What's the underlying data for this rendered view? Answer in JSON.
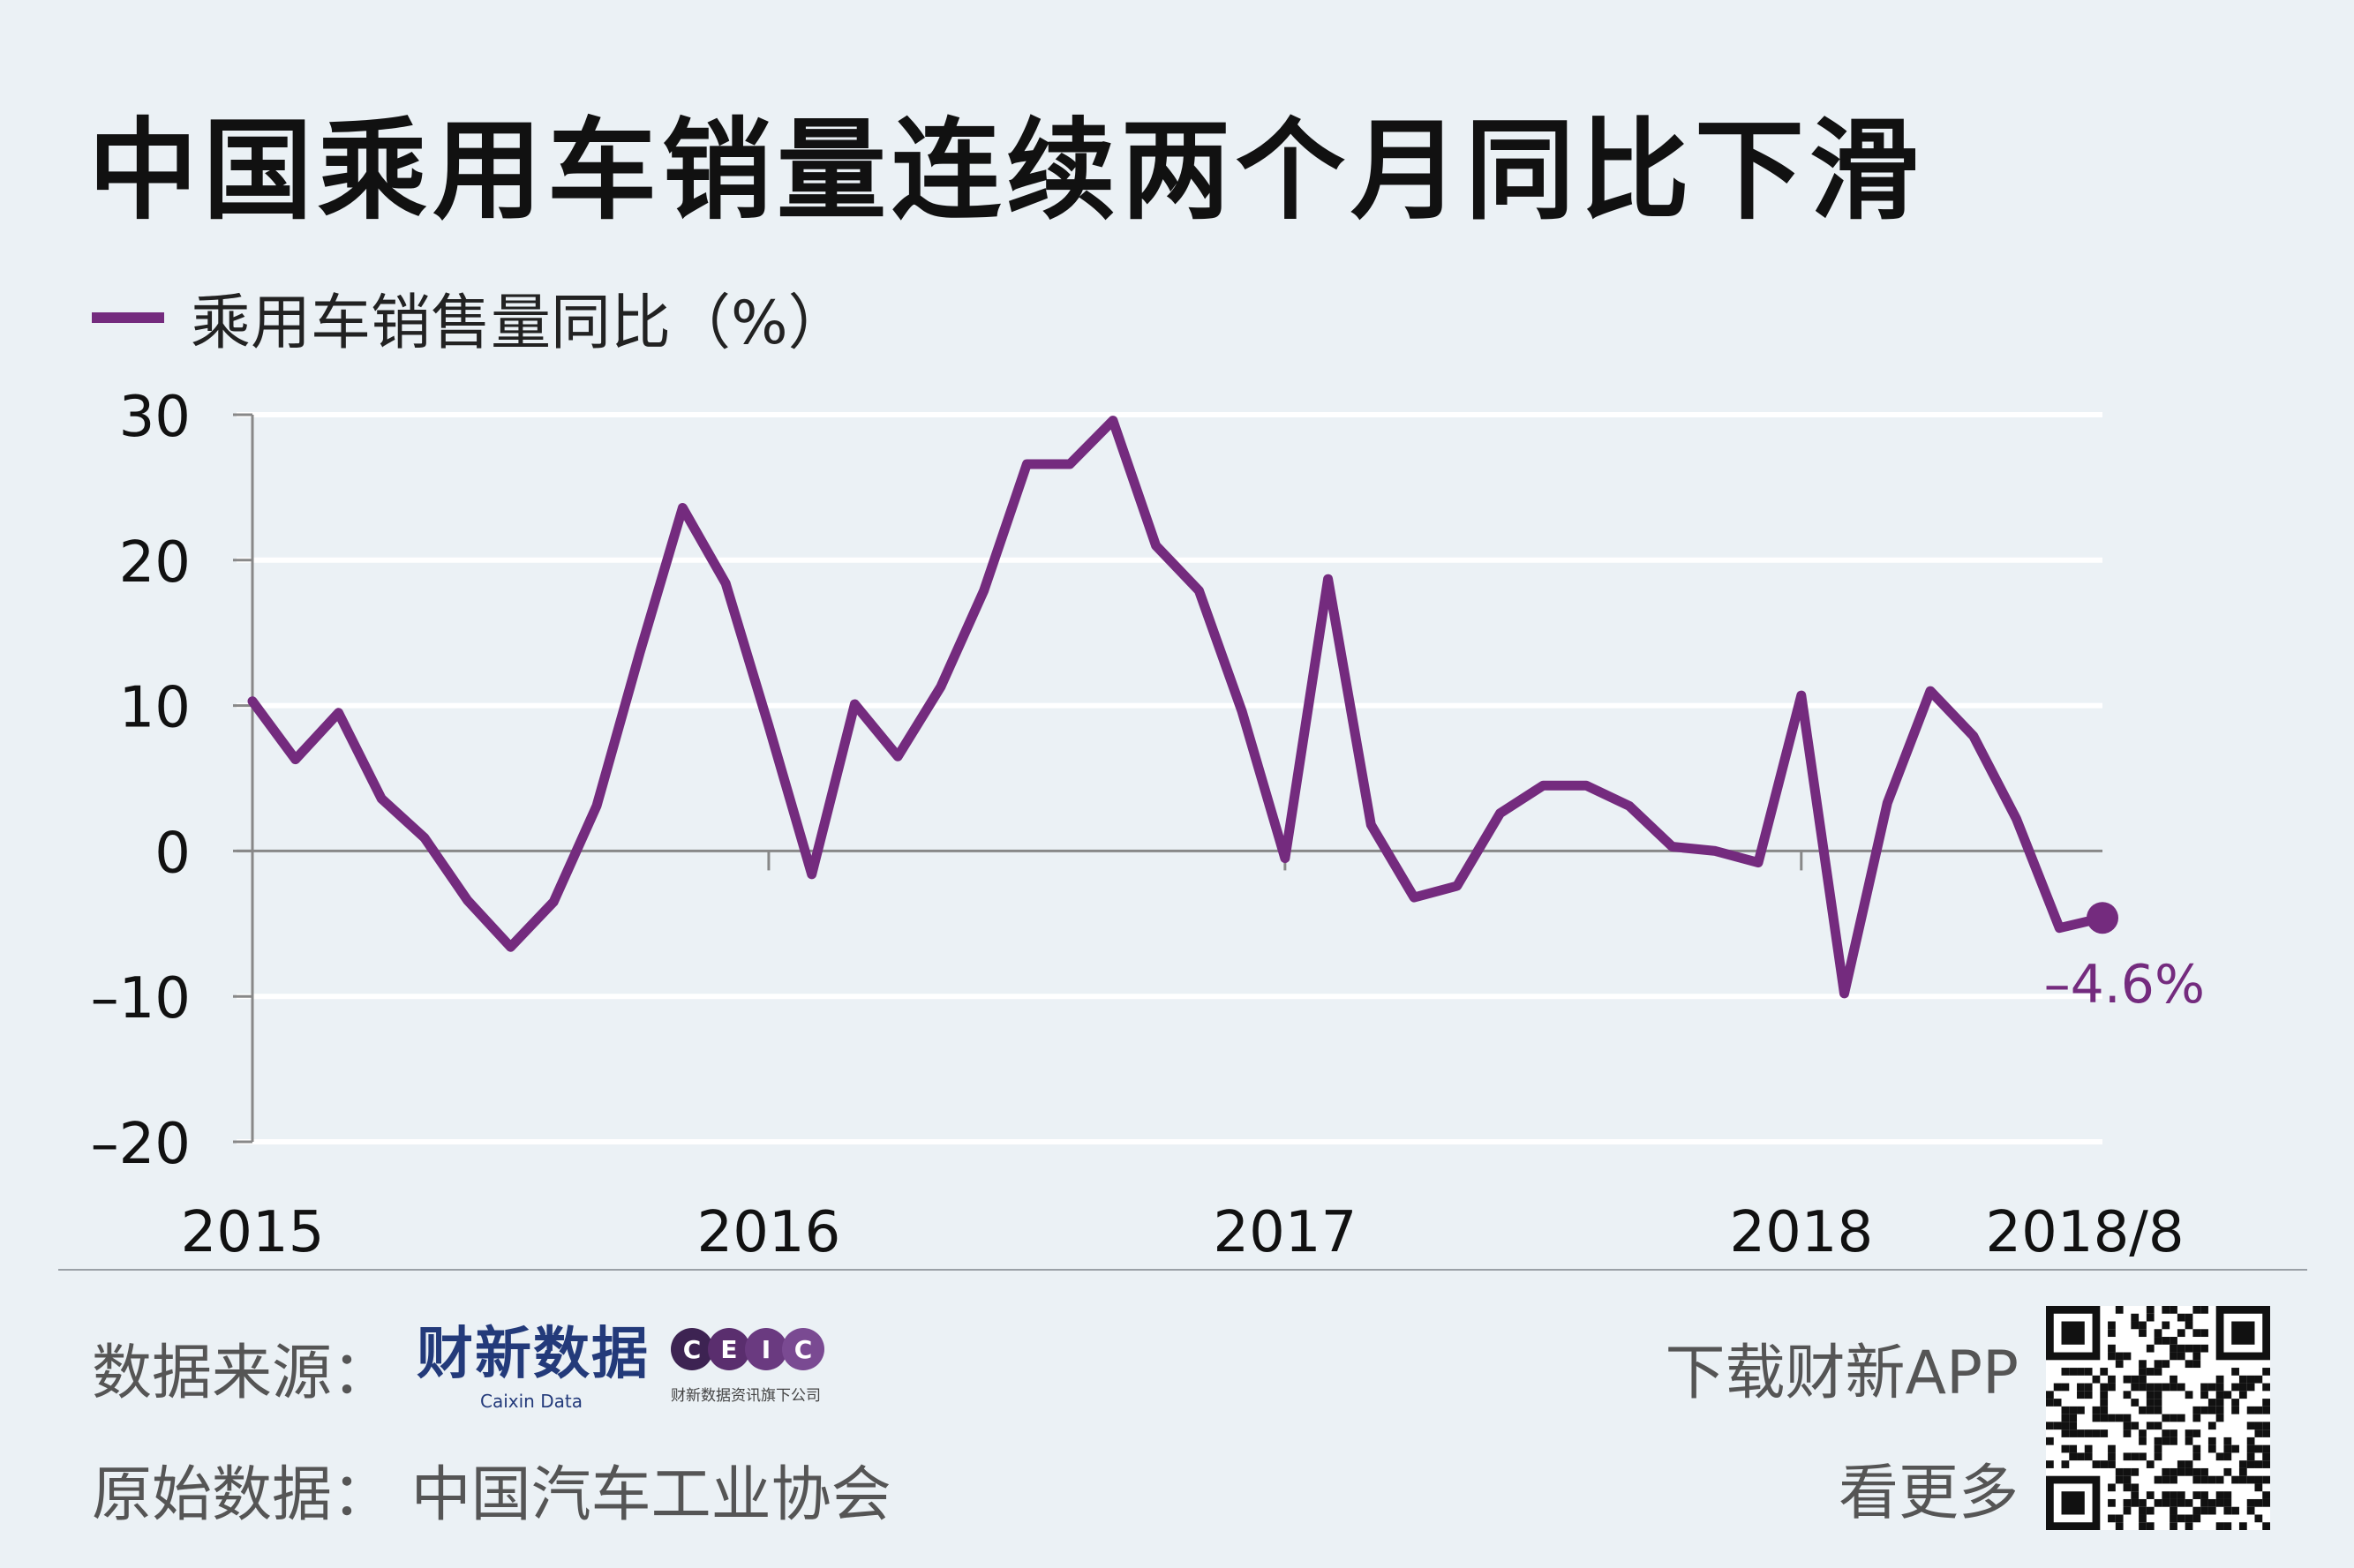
{
  "title": "中国乘用车销量连续两个月同比下滑",
  "legend": {
    "label": "乘用车销售量同比（%）"
  },
  "colors": {
    "series": "#742b7e",
    "grid": "#ffffff",
    "axis": "#888888",
    "background": "#ebf1f5"
  },
  "chart_data": {
    "type": "line",
    "title": "中国乘用车销量连续两个月同比下滑",
    "xlabel": "",
    "ylabel": "",
    "ylim": [
      -20,
      30
    ],
    "yticks": [
      30,
      20,
      10,
      0,
      -10,
      -20
    ],
    "ytick_labels": [
      "30",
      "20",
      "10",
      "0",
      "–10",
      "–20"
    ],
    "xtick_labels": [
      "2015",
      "2016",
      "2017",
      "2018",
      "2018/8"
    ],
    "xtick_index": [
      0,
      12,
      24,
      36,
      43
    ],
    "grid": true,
    "series": [
      {
        "name": "乘用车销售量同比（%）",
        "x": [
          "2015-01",
          "2015-02",
          "2015-03",
          "2015-04",
          "2015-05",
          "2015-06",
          "2015-07",
          "2015-08",
          "2015-09",
          "2015-10",
          "2015-11",
          "2015-12",
          "2016-01",
          "2016-02",
          "2016-03",
          "2016-04",
          "2016-05",
          "2016-06",
          "2016-07",
          "2016-08",
          "2016-09",
          "2016-10",
          "2016-11",
          "2016-12",
          "2017-01",
          "2017-02",
          "2017-03",
          "2017-04",
          "2017-05",
          "2017-06",
          "2017-07",
          "2017-08",
          "2017-09",
          "2017-10",
          "2017-11",
          "2017-12",
          "2018-01",
          "2018-02",
          "2018-03",
          "2018-04",
          "2018-05",
          "2018-06",
          "2018-07",
          "2018-08"
        ],
        "values": [
          10.3,
          6.3,
          9.5,
          3.6,
          0.9,
          -3.4,
          -6.6,
          -3.5,
          3.1,
          13.6,
          23.6,
          18.4,
          8.6,
          -1.6,
          10.1,
          6.5,
          11.3,
          17.9,
          26.6,
          26.6,
          29.6,
          21.0,
          17.9,
          9.6,
          -0.5,
          18.7,
          1.8,
          -3.2,
          -2.4,
          2.6,
          4.5,
          4.5,
          3.1,
          0.3,
          0.0,
          -0.8,
          10.7,
          -9.8,
          3.3,
          11.0,
          7.9,
          2.2,
          -5.3,
          -4.6
        ]
      }
    ],
    "annotations": [
      {
        "label": "–4.6%",
        "index": 43,
        "value": -4.6
      }
    ]
  },
  "footer": {
    "source_label": "数据来源：",
    "caixin_logo_cn": "财新数据",
    "caixin_logo_en": "Caixin Data",
    "ceic_letters": [
      "C",
      "E",
      "I",
      "C"
    ],
    "ceic_sub": "财新数据资讯旗下公司",
    "original_label": "原始数据：  中国汽车工业协会",
    "app_label": "下载财新APP",
    "more_label": "看更多"
  }
}
